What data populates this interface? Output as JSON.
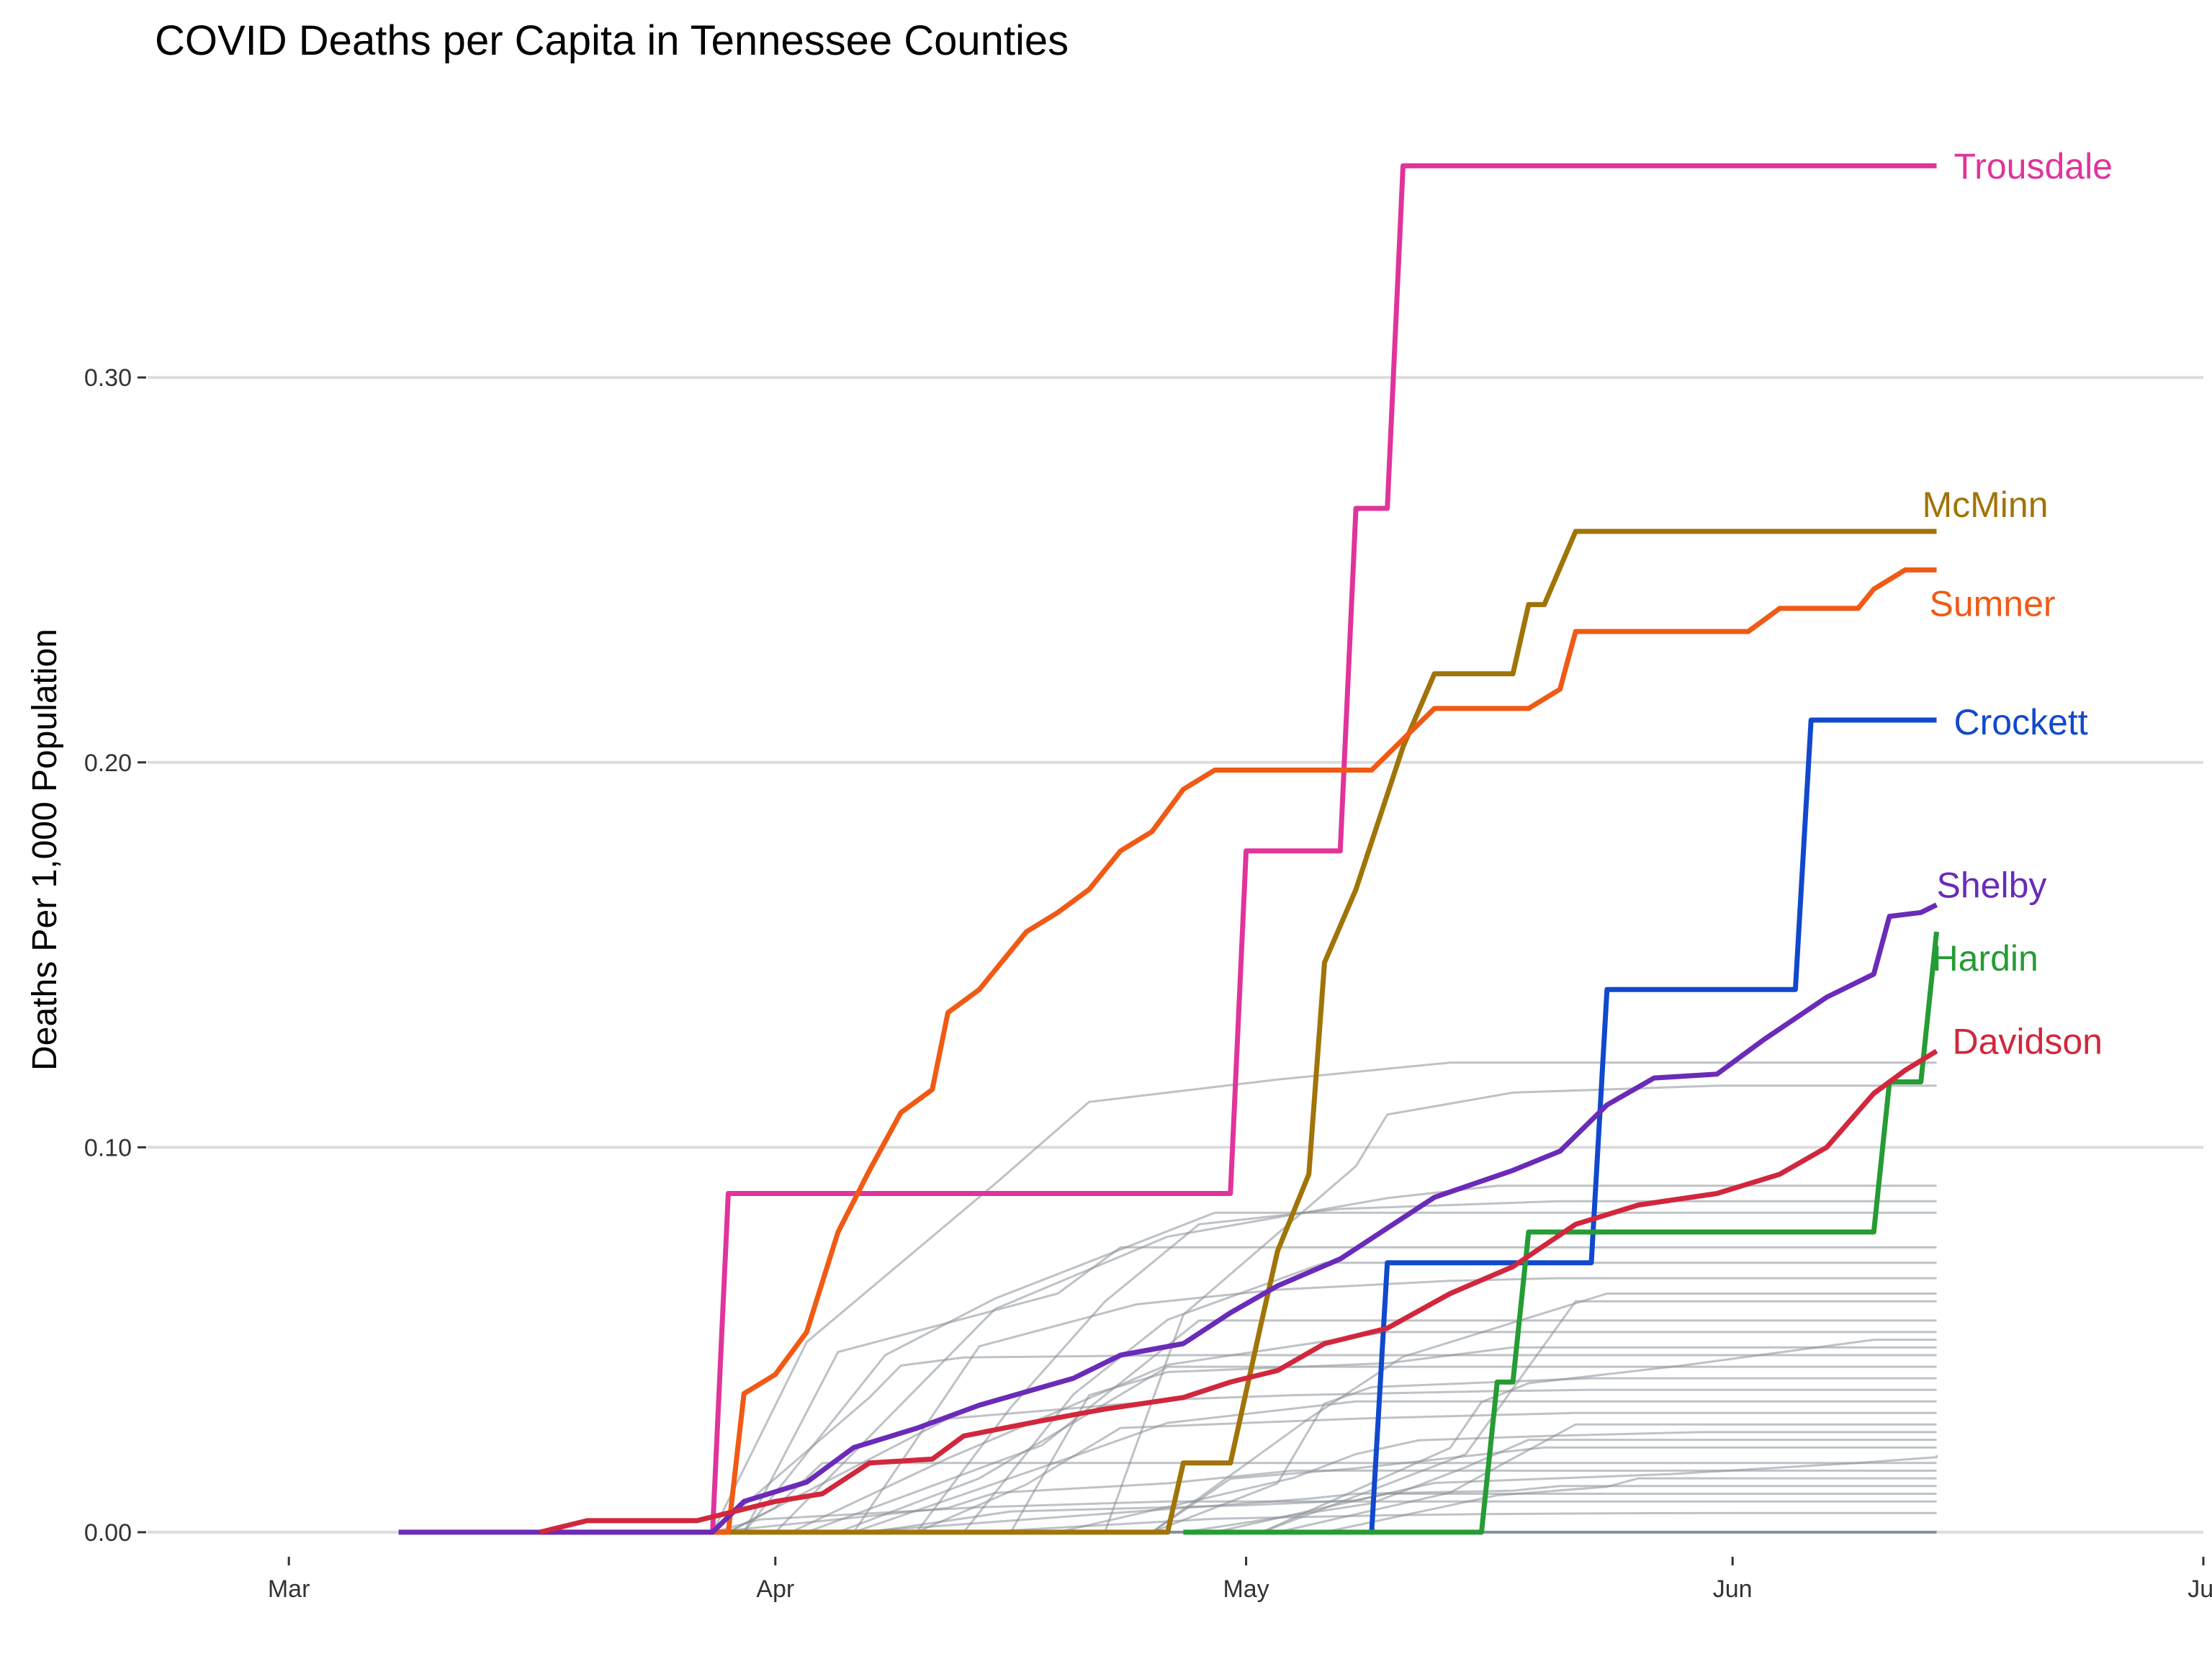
{
  "chart_data": {
    "type": "line",
    "title": "COVID Deaths per Capita in Tennessee Counties",
    "xlabel": "",
    "ylabel": "Deaths Per 1,000 Population",
    "x_ticks": [
      "Mar",
      "Apr",
      "May",
      "Jun",
      "Jul"
    ],
    "x_tick_dates": [
      "2020-03-01",
      "2020-04-01",
      "2020-05-01",
      "2020-06-01",
      "2020-07-01"
    ],
    "xlim": [
      "2020-02-21",
      "2020-07-01"
    ],
    "y_ticks": [
      "0.00",
      "0.10",
      "0.20",
      "0.30"
    ],
    "y_tick_values": [
      0,
      0.1,
      0.2,
      0.3
    ],
    "ylim": [
      -0.006,
      0.37
    ],
    "grid": "horizontal major",
    "legend": "none (direct labels at line ends)",
    "background_color": "#888f98",
    "highlighted_series": [
      {
        "name": "Trousdale",
        "color": "#e0349b",
        "points": [
          [
            "2020-03-28",
            0
          ],
          [
            "2020-03-29",
            0.088
          ],
          [
            "2020-04-30",
            0.088
          ],
          [
            "2020-05-01",
            0.177
          ],
          [
            "2020-05-07",
            0.177
          ],
          [
            "2020-05-08",
            0.266
          ],
          [
            "2020-05-10",
            0.266
          ],
          [
            "2020-05-11",
            0.355
          ],
          [
            "2020-06-14",
            0.355
          ]
        ]
      },
      {
        "name": "McMinn",
        "color": "#a07408",
        "points": [
          [
            "2020-03-28",
            0
          ],
          [
            "2020-04-26",
            0
          ],
          [
            "2020-04-27",
            0.018
          ],
          [
            "2020-04-30",
            0.018
          ],
          [
            "2020-05-02",
            0.055
          ],
          [
            "2020-05-03",
            0.073
          ],
          [
            "2020-05-05",
            0.093
          ],
          [
            "2020-05-06",
            0.148
          ],
          [
            "2020-05-08",
            0.167
          ],
          [
            "2020-05-11",
            0.204
          ],
          [
            "2020-05-13",
            0.223
          ],
          [
            "2020-05-18",
            0.223
          ],
          [
            "2020-05-19",
            0.241
          ],
          [
            "2020-05-20",
            0.241
          ],
          [
            "2020-05-22",
            0.26
          ],
          [
            "2020-06-14",
            0.26
          ]
        ]
      },
      {
        "name": "Sumner",
        "color": "#f05a15",
        "points": [
          [
            "2020-03-17",
            0
          ],
          [
            "2020-03-29",
            0
          ],
          [
            "2020-03-30",
            0.036
          ],
          [
            "2020-04-01",
            0.041
          ],
          [
            "2020-04-03",
            0.052
          ],
          [
            "2020-04-05",
            0.078
          ],
          [
            "2020-04-07",
            0.094
          ],
          [
            "2020-04-09",
            0.109
          ],
          [
            "2020-04-11",
            0.115
          ],
          [
            "2020-04-12",
            0.135
          ],
          [
            "2020-04-14",
            0.141
          ],
          [
            "2020-04-17",
            0.156
          ],
          [
            "2020-04-19",
            0.161
          ],
          [
            "2020-04-21",
            0.167
          ],
          [
            "2020-04-23",
            0.177
          ],
          [
            "2020-04-25",
            0.182
          ],
          [
            "2020-04-27",
            0.193
          ],
          [
            "2020-04-29",
            0.198
          ],
          [
            "2020-05-09",
            0.198
          ],
          [
            "2020-05-13",
            0.214
          ],
          [
            "2020-05-19",
            0.214
          ],
          [
            "2020-05-21",
            0.219
          ],
          [
            "2020-05-22",
            0.234
          ],
          [
            "2020-06-02",
            0.234
          ],
          [
            "2020-06-04",
            0.24
          ],
          [
            "2020-06-09",
            0.24
          ],
          [
            "2020-06-10",
            0.245
          ],
          [
            "2020-06-12",
            0.25
          ],
          [
            "2020-06-14",
            0.25
          ]
        ]
      },
      {
        "name": "Crockett",
        "color": "#1149cc",
        "points": [
          [
            "2020-05-09",
            0
          ],
          [
            "2020-05-10",
            0.07
          ],
          [
            "2020-05-23",
            0.07
          ],
          [
            "2020-05-24",
            0.141
          ],
          [
            "2020-06-05",
            0.141
          ],
          [
            "2020-06-06",
            0.211
          ],
          [
            "2020-06-14",
            0.211
          ]
        ]
      },
      {
        "name": "Shelby",
        "color": "#6a2bb8",
        "points": [
          [
            "2020-03-08",
            0
          ],
          [
            "2020-03-28",
            0
          ],
          [
            "2020-03-30",
            0.008
          ],
          [
            "2020-04-03",
            0.013
          ],
          [
            "2020-04-06",
            0.022
          ],
          [
            "2020-04-10",
            0.027
          ],
          [
            "2020-04-14",
            0.033
          ],
          [
            "2020-04-20",
            0.04
          ],
          [
            "2020-04-23",
            0.046
          ],
          [
            "2020-04-27",
            0.049
          ],
          [
            "2020-04-30",
            0.057
          ],
          [
            "2020-05-03",
            0.064
          ],
          [
            "2020-05-07",
            0.071
          ],
          [
            "2020-05-10",
            0.079
          ],
          [
            "2020-05-13",
            0.087
          ],
          [
            "2020-05-18",
            0.094
          ],
          [
            "2020-05-21",
            0.099
          ],
          [
            "2020-05-24",
            0.111
          ],
          [
            "2020-05-27",
            0.118
          ],
          [
            "2020-05-31",
            0.119
          ],
          [
            "2020-06-03",
            0.128
          ],
          [
            "2020-06-07",
            0.139
          ],
          [
            "2020-06-10",
            0.145
          ],
          [
            "2020-06-11",
            0.16
          ],
          [
            "2020-06-13",
            0.161
          ],
          [
            "2020-06-14",
            0.163
          ]
        ]
      },
      {
        "name": "Hardin",
        "color": "#259c34",
        "points": [
          [
            "2020-04-27",
            0
          ],
          [
            "2020-05-16",
            0
          ],
          [
            "2020-05-17",
            0.039
          ],
          [
            "2020-05-18",
            0.039
          ],
          [
            "2020-05-19",
            0.078
          ],
          [
            "2020-06-10",
            0.078
          ],
          [
            "2020-06-11",
            0.117
          ],
          [
            "2020-06-13",
            0.117
          ],
          [
            "2020-06-14",
            0.156
          ]
        ]
      },
      {
        "name": "Davidson",
        "color": "#d1273d",
        "points": [
          [
            "2020-03-17",
            0
          ],
          [
            "2020-03-20",
            0.003
          ],
          [
            "2020-03-27",
            0.003
          ],
          [
            "2020-03-29",
            0.005
          ],
          [
            "2020-04-01",
            0.008
          ],
          [
            "2020-04-04",
            0.01
          ],
          [
            "2020-04-07",
            0.018
          ],
          [
            "2020-04-11",
            0.019
          ],
          [
            "2020-04-13",
            0.025
          ],
          [
            "2020-04-18",
            0.029
          ],
          [
            "2020-04-22",
            0.032
          ],
          [
            "2020-04-27",
            0.035
          ],
          [
            "2020-04-30",
            0.039
          ],
          [
            "2020-05-03",
            0.042
          ],
          [
            "2020-05-06",
            0.049
          ],
          [
            "2020-05-10",
            0.053
          ],
          [
            "2020-05-14",
            0.062
          ],
          [
            "2020-05-18",
            0.069
          ],
          [
            "2020-05-22",
            0.08
          ],
          [
            "2020-05-26",
            0.085
          ],
          [
            "2020-05-31",
            0.088
          ],
          [
            "2020-06-04",
            0.093
          ],
          [
            "2020-06-07",
            0.1
          ],
          [
            "2020-06-10",
            0.114
          ],
          [
            "2020-06-12",
            0.12
          ],
          [
            "2020-06-14",
            0.125
          ]
        ]
      }
    ],
    "other_counties_count_note": null
  }
}
